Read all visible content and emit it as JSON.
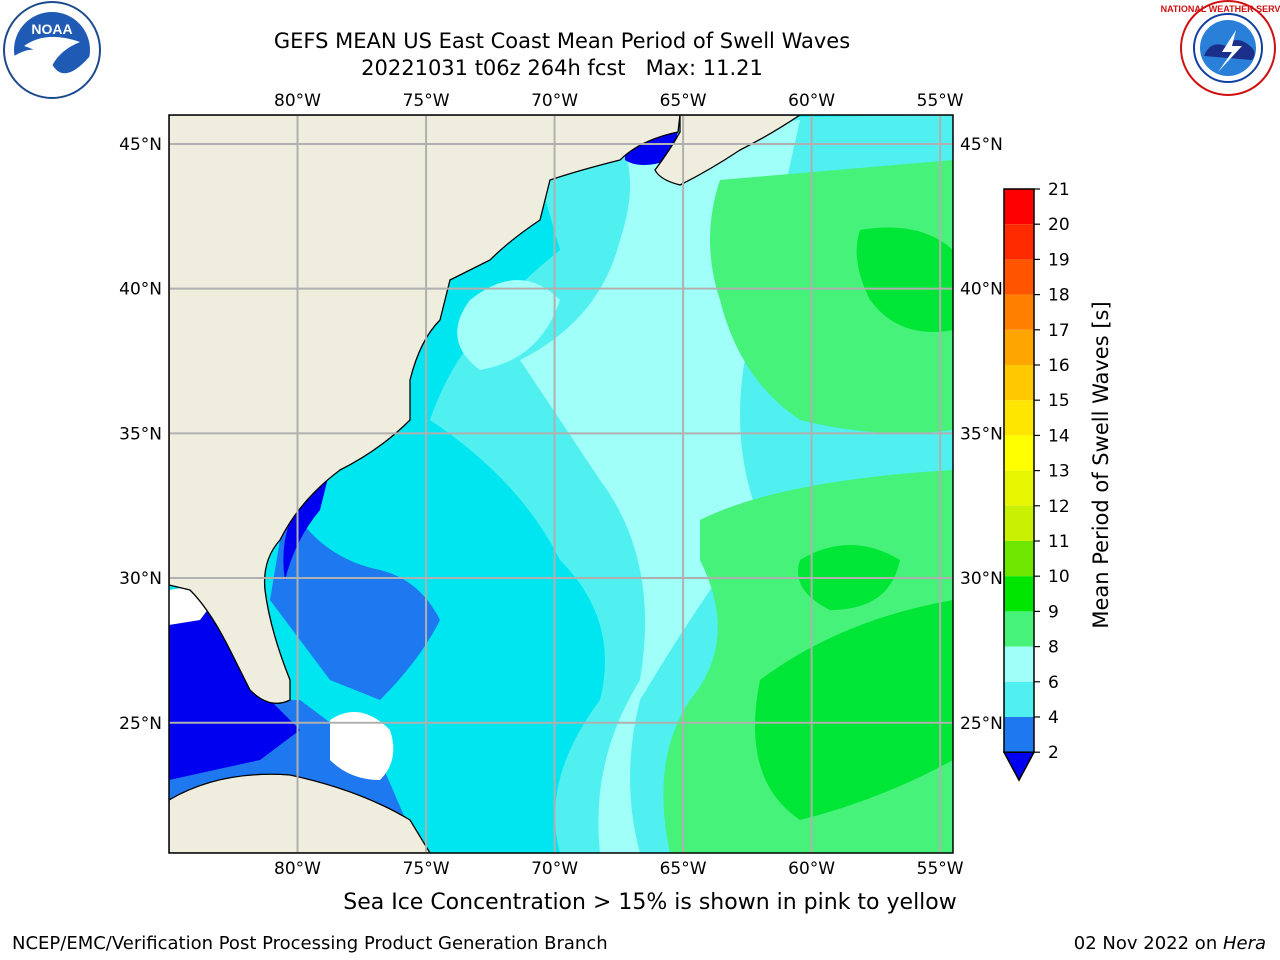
{
  "header": {
    "title_line1": "GEFS MEAN US East Coast Mean Period of Swell Waves",
    "title_line2": "20221031 t06z 264h fcst   Max: 11.21"
  },
  "logos": {
    "left": {
      "name": "noaa-logo",
      "text": "NOAA"
    },
    "right": {
      "name": "nws-logo",
      "text": "NATIONAL WEATHER SERVICE"
    }
  },
  "map": {
    "lon_labels": [
      "80°W",
      "75°W",
      "70°W",
      "65°W",
      "60°W",
      "55°W"
    ],
    "lat_labels": [
      "45°N",
      "40°N",
      "35°N",
      "30°N",
      "25°N"
    ],
    "lon_values": [
      -80,
      -75,
      -70,
      -65,
      -60,
      -55
    ],
    "lat_values": [
      45,
      40,
      35,
      30,
      25
    ],
    "lon_range": [
      -85,
      -54.5
    ],
    "lat_range": [
      20.5,
      46
    ],
    "colors": {
      "land": "#efedde",
      "grid": "#b0b0b0",
      "deep_blue": "#0000f0",
      "blue": "#1e78f0",
      "cyan": "#00e6f0",
      "light_cyan": "#50f0f0",
      "pale_cyan": "#a0fff8",
      "light_green": "#46f27a",
      "green": "#00e636"
    }
  },
  "colorbar": {
    "label": "Mean Period of Swell Waves [s]",
    "ticks": [
      "21",
      "20",
      "19",
      "18",
      "17",
      "16",
      "15",
      "14",
      "13",
      "12",
      "11",
      "10",
      "9",
      "8",
      "6",
      "4",
      "2"
    ],
    "colors": [
      "#ff0000",
      "#ff2a00",
      "#ff5500",
      "#ff8000",
      "#ffa500",
      "#ffc800",
      "#ffe600",
      "#ffff00",
      "#e6f500",
      "#c8f000",
      "#6ee600",
      "#00e600",
      "#46f27a",
      "#a0fff8",
      "#50f0f0",
      "#00e6f0",
      "#1e78f0"
    ],
    "extend_color": "#0000f0"
  },
  "footer": {
    "note": "Sea Ice Concentration > 15% is shown in pink to yellow",
    "left": "NCEP/EMC/Verification Post Processing Product Generation Branch",
    "right_date": "02 Nov 2022 on ",
    "right_host": "Hera"
  }
}
